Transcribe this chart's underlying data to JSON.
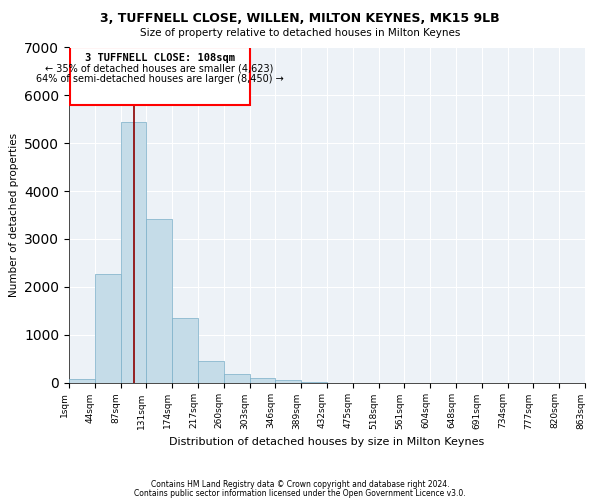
{
  "title": "3, TUFFNELL CLOSE, WILLEN, MILTON KEYNES, MK15 9LB",
  "subtitle": "Size of property relative to detached houses in Milton Keynes",
  "xlabel": "Distribution of detached houses by size in Milton Keynes",
  "ylabel": "Number of detached properties",
  "bar_color": "#c5dce8",
  "bar_edge_color": "#7aafc8",
  "vline_color": "#8b0000",
  "vline_x_index": 2.5,
  "annotation_title": "3 TUFFNELL CLOSE: 108sqm",
  "annotation_line1": "← 35% of detached houses are smaller (4,623)",
  "annotation_line2": "64% of semi-detached houses are larger (8,450) →",
  "tick_labels": [
    "1sqm",
    "44sqm",
    "87sqm",
    "131sqm",
    "174sqm",
    "217sqm",
    "260sqm",
    "303sqm",
    "346sqm",
    "389sqm",
    "432sqm",
    "475sqm",
    "518sqm",
    "561sqm",
    "604sqm",
    "648sqm",
    "691sqm",
    "734sqm",
    "777sqm",
    "820sqm",
    "863sqm"
  ],
  "bar_heights": [
    65,
    2270,
    5450,
    3420,
    1340,
    450,
    170,
    90,
    50,
    15,
    0,
    0,
    0,
    0,
    0,
    0,
    0,
    0,
    0,
    0
  ],
  "ylim": [
    0,
    7000
  ],
  "yticks": [
    0,
    1000,
    2000,
    3000,
    4000,
    5000,
    6000,
    7000
  ],
  "footnote1": "Contains HM Land Registry data © Crown copyright and database right 2024.",
  "footnote2": "Contains public sector information licensed under the Open Government Licence v3.0.",
  "background_color": "#edf2f7"
}
